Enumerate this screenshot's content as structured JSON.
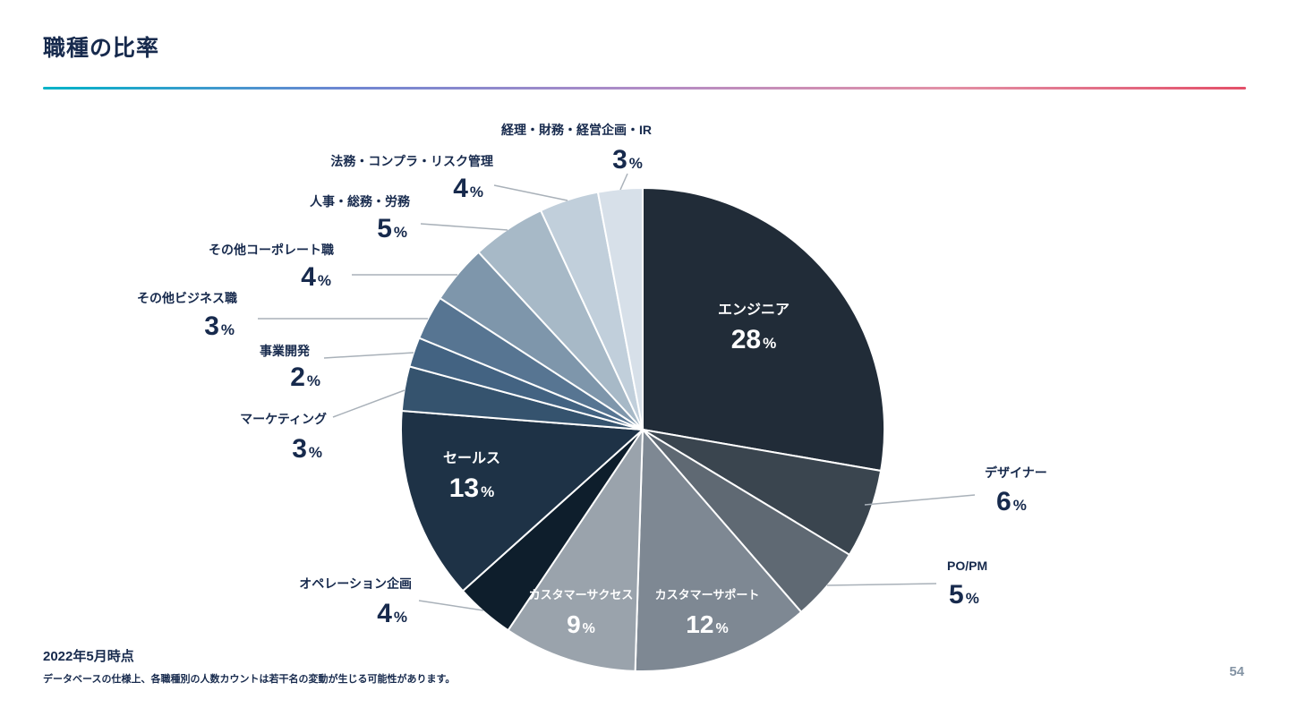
{
  "header": {
    "title": "職種の比率"
  },
  "divider_gradient": [
    "#00b3c7",
    "#6e86d2",
    "#b18cc6",
    "#e290a6",
    "#e35069"
  ],
  "footer": {
    "as_of": "2022年5月時点",
    "note": "データベースの仕様上、各職種別の人数カウントは若干名の変動が生じる可能性があります。",
    "page_number": "54"
  },
  "chart_data": {
    "type": "pie",
    "title": "職種の比率",
    "unit": "%",
    "direction": "clockwise",
    "start_at": "top",
    "label_color": "#172a4d",
    "inside_label_color": "#ffffff",
    "leader_color": "#a9b1b9",
    "slices": [
      {
        "label": "エンジニア",
        "value": 28,
        "color": "#212c38",
        "label_placement": "inside"
      },
      {
        "label": "デザイナー",
        "value": 6,
        "color": "#3a454f",
        "label_placement": "outside"
      },
      {
        "label": "PO/PM",
        "value": 5,
        "color": "#5f6973",
        "label_placement": "outside"
      },
      {
        "label": "カスタマーサポート",
        "value": 12,
        "color": "#7e8893",
        "label_placement": "inside"
      },
      {
        "label": "カスタマーサクセス",
        "value": 9,
        "color": "#9aa3ac",
        "label_placement": "inside"
      },
      {
        "label": "オペレーション企画",
        "value": 4,
        "color": "#0e1e2c",
        "label_placement": "outside"
      },
      {
        "label": "セールス",
        "value": 13,
        "color": "#1e3246",
        "label_placement": "inside"
      },
      {
        "label": "マーケティング",
        "value": 3,
        "color": "#35536e",
        "label_placement": "outside"
      },
      {
        "label": "事業開発",
        "value": 2,
        "color": "#436382",
        "label_placement": "outside"
      },
      {
        "label": "その他ビジネス職",
        "value": 3,
        "color": "#577592",
        "label_placement": "outside"
      },
      {
        "label": "その他コーポレート職",
        "value": 4,
        "color": "#7e96ab",
        "label_placement": "outside"
      },
      {
        "label": "人事・総務・労務",
        "value": 5,
        "color": "#a7b9c7",
        "label_placement": "outside"
      },
      {
        "label": "法務・コンプラ・リスク管理",
        "value": 4,
        "color": "#c1cfdb",
        "label_placement": "outside"
      },
      {
        "label": "経理・財務・経営企画・IR",
        "value": 3,
        "color": "#d7e0e9",
        "label_placement": "outside"
      }
    ]
  }
}
